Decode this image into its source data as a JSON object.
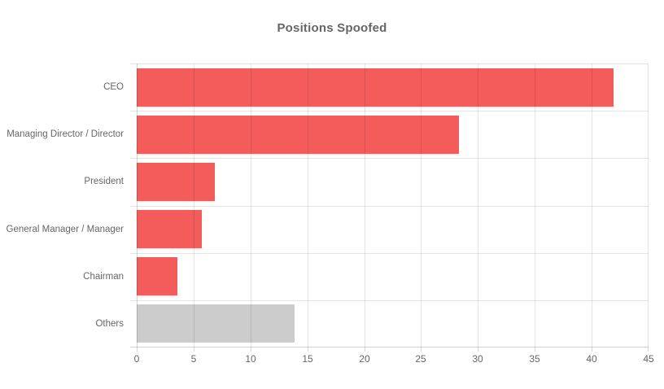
{
  "chart_data": {
    "type": "bar",
    "orientation": "horizontal",
    "title": "Positions Spoofed",
    "categories": [
      "CEO",
      "Managing Director / Director",
      "President",
      "General Manager / Manager",
      "Chairman",
      "Others"
    ],
    "values": [
      41.9,
      28.3,
      6.9,
      5.7,
      3.6,
      13.9
    ],
    "bar_colors": [
      "#f45b5b",
      "#f45b5b",
      "#f45b5b",
      "#f45b5b",
      "#f45b5b",
      "#cccccc"
    ],
    "xlabel": "",
    "ylabel": "",
    "xlim": [
      0,
      45
    ],
    "x_ticks": [
      "0",
      "5",
      "10",
      "15",
      "20",
      "25",
      "30",
      "35",
      "40",
      "45"
    ],
    "grid": true,
    "legend": "none",
    "colors": {
      "series_red": "#f45b5b",
      "series_gray": "#cccccc",
      "gridline": "#e6e6e6",
      "axis_line": "#d4d4d4",
      "title_text": "#666666",
      "label_text": "#666666"
    }
  }
}
